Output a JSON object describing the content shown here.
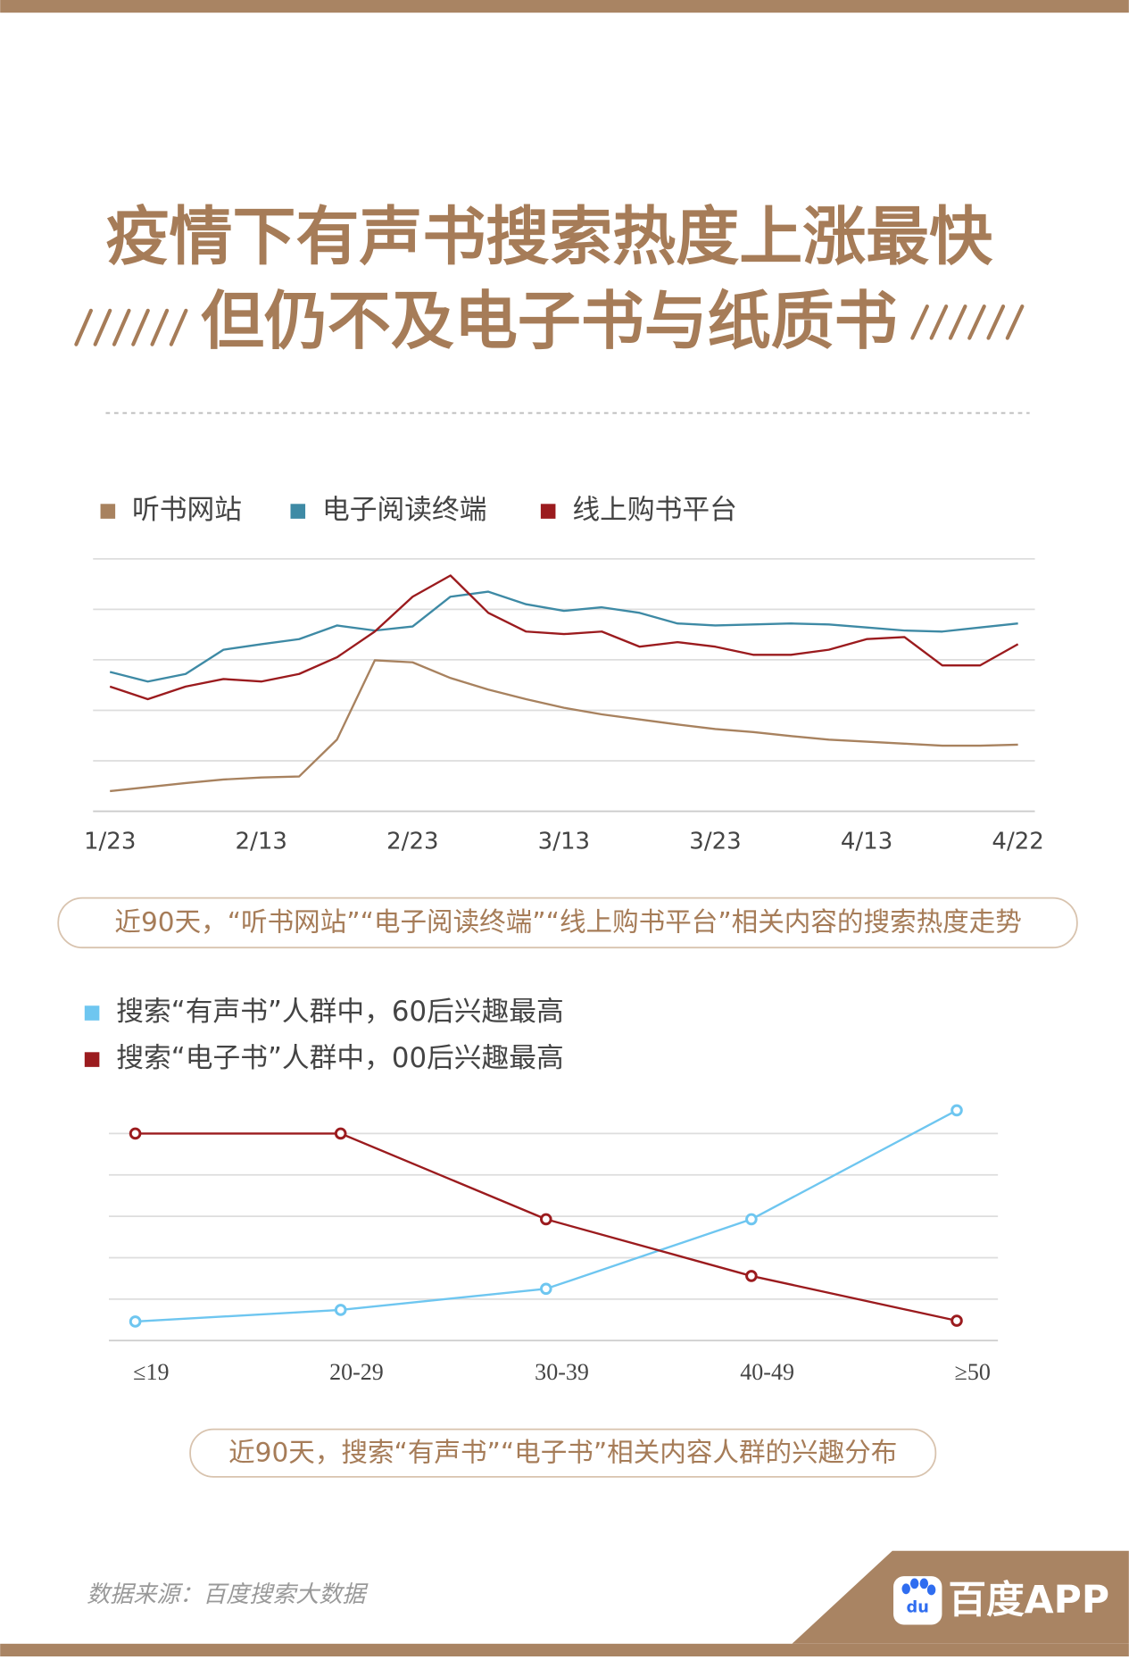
{
  "header": {
    "title_lines": [
      "疫情下有声书搜索热度上涨最快",
      "但仍不及电子书与纸质书"
    ]
  },
  "chart_data": [
    {
      "type": "line",
      "title": "近90天，“听书网站”“电子阅读终端”“线上购书平台”相关内容的搜索热度走势",
      "categories": [
        "1/23",
        null,
        null,
        null,
        "2/13",
        null,
        null,
        null,
        "2/23",
        null,
        null,
        null,
        "3/13",
        null,
        null,
        null,
        "3/23",
        null,
        null,
        null,
        "4/13",
        null,
        null,
        null,
        "4/22"
      ],
      "series": [
        {
          "name": "听书网站",
          "color": "#a8825f",
          "values": [
            0.4,
            0.48,
            0.56,
            0.63,
            0.67,
            0.69,
            1.42,
            2.99,
            2.95,
            2.64,
            2.41,
            2.22,
            2.05,
            1.92,
            1.82,
            1.72,
            1.63,
            1.57,
            1.49,
            1.42,
            1.38,
            1.34,
            1.3,
            1.3,
            1.32
          ]
        },
        {
          "name": "电子阅读终端",
          "color": "#3e8aa5",
          "values": [
            2.76,
            2.57,
            2.72,
            3.2,
            3.31,
            3.41,
            3.68,
            3.58,
            3.66,
            4.25,
            4.35,
            4.1,
            3.97,
            4.04,
            3.93,
            3.72,
            3.68,
            3.7,
            3.72,
            3.7,
            3.64,
            3.58,
            3.56,
            3.64,
            3.72
          ]
        },
        {
          "name": "线上购书平台",
          "color": "#9b1b1e",
          "values": [
            2.47,
            2.22,
            2.47,
            2.62,
            2.57,
            2.72,
            3.05,
            3.56,
            4.25,
            4.67,
            3.93,
            3.56,
            3.51,
            3.56,
            3.26,
            3.35,
            3.26,
            3.1,
            3.1,
            3.2,
            3.41,
            3.45,
            2.89,
            2.89,
            3.31
          ]
        }
      ],
      "ylim": [
        0,
        5
      ],
      "yticks": [
        0,
        1,
        2,
        3,
        4,
        5
      ],
      "grid": true
    },
    {
      "type": "line",
      "title": "近90天，搜索“有声书”“电子书”相关内容人群的兴趣分布",
      "categories": [
        "≤19",
        "20-29",
        "30-39",
        "40-49",
        "≥50"
      ],
      "series": [
        {
          "name": "搜索“有声书”人群中，60后兴趣最高",
          "color": "#6ec6f0",
          "values": [
            0.46,
            0.74,
            1.25,
            2.93,
            5.56
          ]
        },
        {
          "name": "搜索“电子书”人群中，00后兴趣最高",
          "color": "#9b1b1e",
          "values": [
            5.0,
            5.0,
            2.93,
            1.56,
            0.48
          ]
        }
      ],
      "ylim": [
        0,
        6
      ],
      "yticks": [
        0,
        1,
        2,
        3,
        4,
        5
      ],
      "grid": true,
      "markers": true
    }
  ],
  "footer": {
    "source": "数据来源：百度搜索大数据",
    "icon_text": "du",
    "brand": "百度APP"
  }
}
